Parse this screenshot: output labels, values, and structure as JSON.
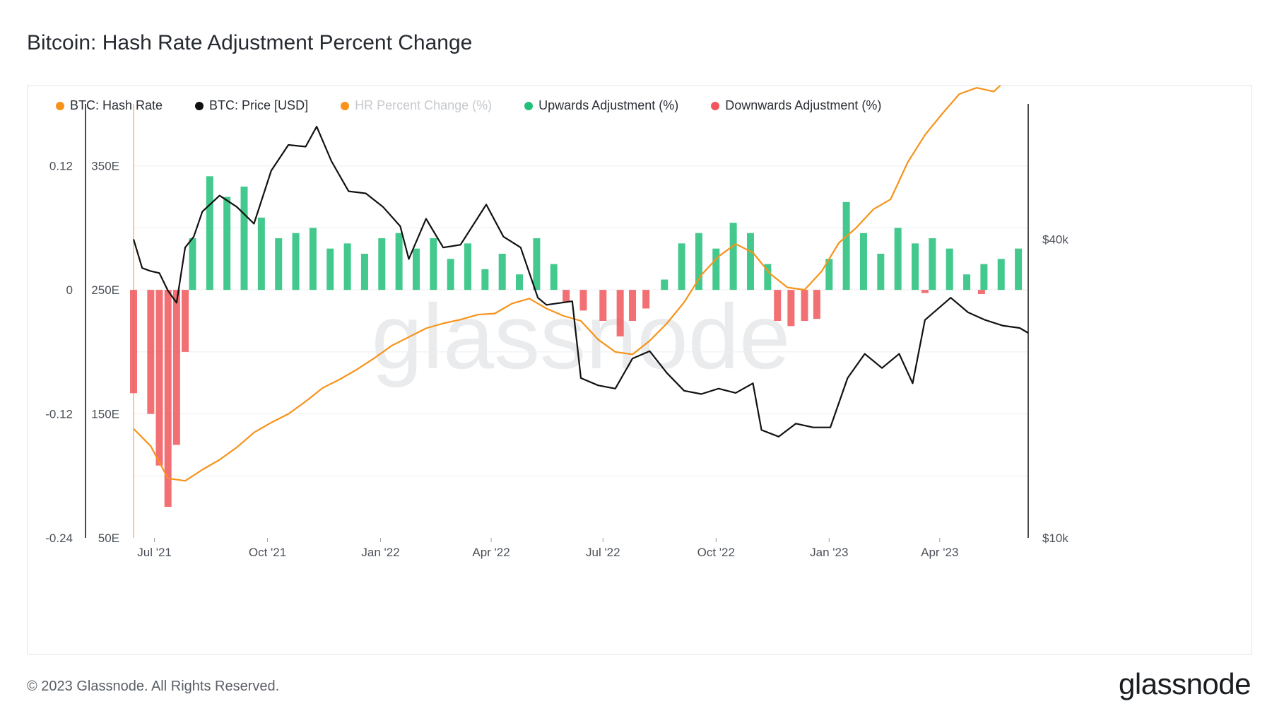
{
  "title": "Bitcoin: Hash Rate Adjustment Percent Change",
  "legend": [
    {
      "label": "BTC: Hash Rate",
      "color": "#f7931a",
      "active": true
    },
    {
      "label": "BTC: Price [USD]",
      "color": "#111111",
      "active": true
    },
    {
      "label": "HR Percent Change (%)",
      "color": "#f7931a",
      "active": false
    },
    {
      "label": "Upwards Adjustment (%)",
      "color": "#22c07a",
      "active": true
    },
    {
      "label": "Downwards Adjustment (%)",
      "color": "#f0565a",
      "active": true
    }
  ],
  "watermark": "glassnode",
  "footer": "© 2023 Glassnode. All Rights Reserved.",
  "brand": "glassnode",
  "chart_data": {
    "type": "line",
    "x_tick_labels": [
      "Jul '21",
      "Oct '21",
      "Jan '22",
      "Apr '22",
      "Jul '22",
      "Oct '22",
      "Jan '23",
      "Apr '23"
    ],
    "left_axis_pct_ticks": [
      "0.12",
      "0",
      "-0.12",
      "-0.24"
    ],
    "left_axis_pct_range": [
      -0.24,
      0.18
    ],
    "left_axis_hashrate_ticks": [
      "350E",
      "250E",
      "150E",
      "50E"
    ],
    "left_axis_hashrate_range": [
      50,
      400
    ],
    "right_axis_price_ticks": [
      "$40k",
      "$10k"
    ],
    "right_axis_price_scale": "log",
    "right_axis_price_range": [
      10000,
      75000
    ],
    "series": [
      {
        "name": "BTC: Hash Rate",
        "axis": "hashrate",
        "color": "#f7931a",
        "x": [
          "2021-06-14",
          "2021-06-28",
          "2021-07-12",
          "2021-07-26",
          "2021-08-09",
          "2021-08-23",
          "2021-09-06",
          "2021-09-20",
          "2021-10-04",
          "2021-10-18",
          "2021-11-01",
          "2021-11-15",
          "2021-11-29",
          "2021-12-13",
          "2021-12-27",
          "2022-01-10",
          "2022-01-24",
          "2022-02-07",
          "2022-02-21",
          "2022-03-07",
          "2022-03-21",
          "2022-04-04",
          "2022-04-18",
          "2022-05-02",
          "2022-05-16",
          "2022-05-30",
          "2022-06-13",
          "2022-06-27",
          "2022-07-11",
          "2022-07-25",
          "2022-08-08",
          "2022-08-22",
          "2022-09-05",
          "2022-09-19",
          "2022-10-03",
          "2022-10-17",
          "2022-10-31",
          "2022-11-14",
          "2022-11-28",
          "2022-12-12",
          "2022-12-26",
          "2023-01-09",
          "2023-01-23",
          "2023-02-06",
          "2023-02-20",
          "2023-03-06",
          "2023-03-20",
          "2023-04-03",
          "2023-04-17",
          "2023-05-01",
          "2023-05-15",
          "2023-05-29",
          "2023-06-12"
        ],
        "values": [
          138,
          124,
          98,
          96,
          105,
          113,
          123,
          135,
          143,
          150,
          160,
          171,
          178,
          186,
          195,
          205,
          212,
          219,
          223,
          226,
          230,
          231,
          239,
          243,
          235,
          229,
          225,
          210,
          200,
          198,
          209,
          223,
          240,
          262,
          277,
          287,
          280,
          263,
          252,
          250,
          265,
          288,
          300,
          315,
          323,
          353,
          375,
          392,
          408,
          413,
          410,
          423,
          460
        ]
      },
      {
        "name": "BTC: Price [USD]",
        "axis": "price",
        "color": "#111111",
        "x": [
          "2021-06-14",
          "2021-06-21",
          "2021-06-28",
          "2021-07-05",
          "2021-07-12",
          "2021-07-19",
          "2021-07-26",
          "2021-08-02",
          "2021-08-09",
          "2021-08-23",
          "2021-09-06",
          "2021-09-20",
          "2021-10-04",
          "2021-10-18",
          "2021-11-01",
          "2021-11-10",
          "2021-11-22",
          "2021-12-06",
          "2021-12-20",
          "2022-01-03",
          "2022-01-17",
          "2022-01-24",
          "2022-02-07",
          "2022-02-21",
          "2022-03-07",
          "2022-03-28",
          "2022-04-11",
          "2022-04-25",
          "2022-05-09",
          "2022-05-16",
          "2022-06-06",
          "2022-06-13",
          "2022-06-27",
          "2022-07-11",
          "2022-07-25",
          "2022-08-08",
          "2022-08-22",
          "2022-09-05",
          "2022-09-19",
          "2022-10-03",
          "2022-10-17",
          "2022-10-31",
          "2022-11-07",
          "2022-11-21",
          "2022-12-05",
          "2022-12-19",
          "2023-01-02",
          "2023-01-16",
          "2023-01-30",
          "2023-02-13",
          "2023-02-27",
          "2023-03-10",
          "2023-03-20",
          "2023-04-10",
          "2023-04-24",
          "2023-05-08",
          "2023-05-22",
          "2023-06-05",
          "2023-06-12"
        ],
        "values": [
          40000,
          35000,
          34500,
          34200,
          31500,
          29800,
          38500,
          40500,
          45500,
          49000,
          46500,
          43000,
          55000,
          62000,
          61500,
          67500,
          57500,
          50000,
          49500,
          46500,
          42500,
          36500,
          44000,
          38500,
          39000,
          47000,
          40500,
          38500,
          30500,
          29500,
          30000,
          21000,
          20300,
          20000,
          23000,
          23800,
          21500,
          19800,
          19500,
          20000,
          19600,
          20500,
          16500,
          16000,
          17000,
          16700,
          16700,
          21000,
          23500,
          22000,
          23500,
          20500,
          27500,
          30500,
          28500,
          27500,
          26800,
          26500,
          25900
        ]
      },
      {
        "name": "Upwards Adjustment (%)",
        "axis": "pct",
        "color": "#22c07a",
        "x": [
          "2021-08-01",
          "2021-08-15",
          "2021-08-29",
          "2021-09-12",
          "2021-09-26",
          "2021-10-10",
          "2021-10-24",
          "2021-11-07",
          "2021-11-21",
          "2021-12-05",
          "2021-12-19",
          "2022-01-02",
          "2022-01-16",
          "2022-01-30",
          "2022-02-13",
          "2022-02-27",
          "2022-03-13",
          "2022-03-27",
          "2022-04-10",
          "2022-04-24",
          "2022-05-08",
          "2022-05-22",
          "2022-08-20",
          "2022-09-03",
          "2022-09-17",
          "2022-10-01",
          "2022-10-15",
          "2022-10-29",
          "2022-11-12",
          "2023-01-01",
          "2023-01-15",
          "2023-01-29",
          "2023-02-12",
          "2023-02-26",
          "2023-03-12",
          "2023-03-26",
          "2023-04-09",
          "2023-04-23",
          "2023-05-07",
          "2023-05-21",
          "2023-06-04"
        ],
        "values": [
          0.05,
          0.11,
          0.09,
          0.1,
          0.07,
          0.05,
          0.055,
          0.06,
          0.04,
          0.045,
          0.035,
          0.05,
          0.055,
          0.04,
          0.05,
          0.03,
          0.045,
          0.02,
          0.035,
          0.015,
          0.05,
          0.025,
          0.01,
          0.045,
          0.055,
          0.04,
          0.065,
          0.055,
          0.025,
          0.03,
          0.085,
          0.055,
          0.035,
          0.06,
          0.045,
          0.05,
          0.04,
          0.015,
          0.025,
          0.03,
          0.04
        ]
      },
      {
        "name": "Downwards Adjustment (%)",
        "axis": "pct",
        "color": "#f0565a",
        "x": [
          "2021-06-14",
          "2021-06-28",
          "2021-07-05",
          "2021-07-12",
          "2021-07-19",
          "2021-07-26",
          "2022-06-01",
          "2022-06-15",
          "2022-07-01",
          "2022-07-15",
          "2022-07-25",
          "2022-08-05",
          "2022-11-20",
          "2022-12-01",
          "2022-12-12",
          "2022-12-22",
          "2023-03-20",
          "2023-05-05"
        ],
        "values": [
          -0.1,
          -0.12,
          -0.17,
          -0.21,
          -0.15,
          -0.06,
          -0.012,
          -0.02,
          -0.03,
          -0.045,
          -0.03,
          -0.018,
          -0.03,
          -0.035,
          -0.03,
          -0.028,
          -0.003,
          -0.004
        ]
      }
    ]
  }
}
